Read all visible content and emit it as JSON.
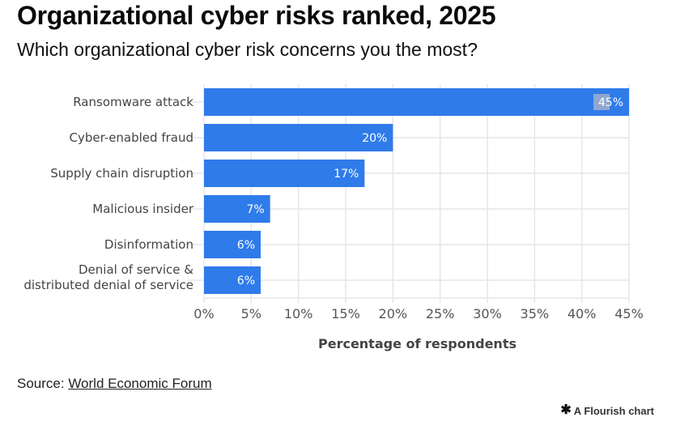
{
  "title": "Organizational cyber risks ranked, 2025",
  "subtitle": "Which organizational cyber risk concerns you the most?",
  "source": {
    "prefix": "Source: ",
    "link_text": "World Economic Forum"
  },
  "branding": {
    "icon": "flourish-star-icon",
    "text": "A Flourish chart"
  },
  "colors": {
    "bar": "#2f7bea",
    "grid": "#e6e6e6",
    "selection_highlight": "#8fa6cf"
  },
  "chart_data": {
    "type": "bar",
    "orientation": "horizontal",
    "title": "Organizational cyber risks ranked, 2025",
    "subtitle": "Which organizational cyber risk concerns you the most?",
    "categories": [
      [
        "Ransomware attack"
      ],
      [
        "Cyber-enabled fraud"
      ],
      [
        "Supply chain disruption"
      ],
      [
        "Malicious insider"
      ],
      [
        "Disinformation"
      ],
      [
        "Denial of service &",
        "distributed denial of service"
      ]
    ],
    "values": [
      45,
      20,
      17,
      7,
      6,
      6
    ],
    "value_labels": [
      "45%",
      "20%",
      "17%",
      "7%",
      "6%",
      "6%"
    ],
    "xlabel": "Percentage of respondents",
    "ylabel": "",
    "xlim": [
      0,
      45
    ],
    "x_ticks": [
      0,
      5,
      10,
      15,
      20,
      25,
      30,
      35,
      40,
      45
    ],
    "x_tick_labels": [
      "0%",
      "5%",
      "10%",
      "15%",
      "20%",
      "25%",
      "30%",
      "35%",
      "40%",
      "45%"
    ],
    "grid": true,
    "legend": "none"
  }
}
